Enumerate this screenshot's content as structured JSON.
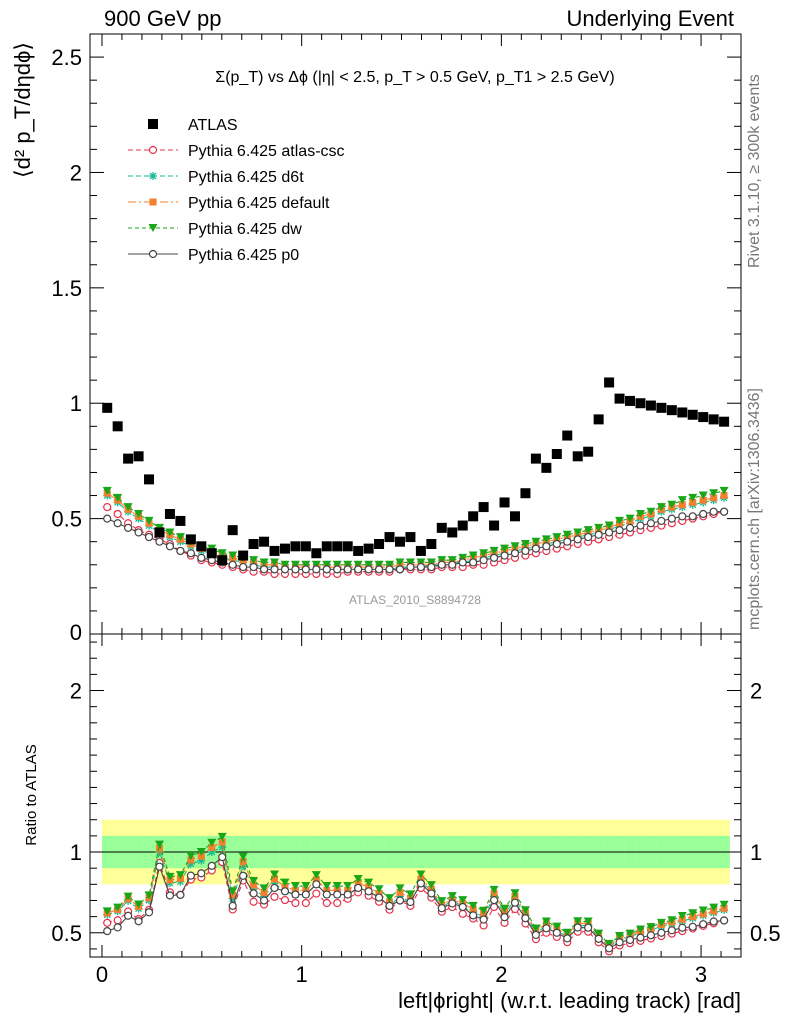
{
  "header": {
    "left": "900 GeV pp",
    "right": "Underlying Event"
  },
  "side_text": {
    "rivet": "Rivet 3.1.10, ≥ 300k events",
    "source": "mcplots.cern.ch [arXiv:1306.3436]"
  },
  "chart_data": [
    {
      "type": "scatter",
      "title": "Σ(p_T) vs Δϕ (|η| < 2.5, p_T > 0.5 GeV, p_T1 > 2.5 GeV)",
      "ylabel": "⟨d² p_T/dηdϕ⟩",
      "xlabel": "left|ϕright| (w.r.t. leading track) [rad]",
      "watermark": "ATLAS_2010_S8894728",
      "xlim": [
        -0.06,
        3.2
      ],
      "ylim": [
        0,
        2.6
      ],
      "yticks": [
        0.5,
        1,
        1.5,
        2,
        2.5
      ],
      "x": [
        0.0262,
        0.0785,
        0.1309,
        0.1833,
        0.2356,
        0.288,
        0.3403,
        0.3927,
        0.4451,
        0.4974,
        0.5498,
        0.6021,
        0.6545,
        0.7069,
        0.7592,
        0.8116,
        0.8639,
        0.9163,
        0.9687,
        1.021,
        1.0734,
        1.1257,
        1.1781,
        1.2305,
        1.2828,
        1.3352,
        1.3875,
        1.4399,
        1.4923,
        1.5446,
        1.597,
        1.6493,
        1.7017,
        1.7541,
        1.8064,
        1.8588,
        1.9111,
        1.9635,
        2.0159,
        2.0682,
        2.1206,
        2.1729,
        2.2253,
        2.2777,
        2.33,
        2.3824,
        2.4347,
        2.4871,
        2.5395,
        2.5918,
        2.6442,
        2.6965,
        2.7489,
        2.8013,
        2.8536,
        2.906,
        2.9583,
        3.0107,
        3.0631,
        3.1154
      ],
      "series": [
        {
          "name": "ATLAS",
          "color": "#000000",
          "marker": "square",
          "values": [
            0.98,
            0.9,
            0.76,
            0.77,
            0.67,
            0.44,
            0.52,
            0.49,
            0.41,
            0.38,
            0.35,
            0.32,
            0.45,
            0.34,
            0.39,
            0.4,
            0.36,
            0.37,
            0.38,
            0.38,
            0.35,
            0.38,
            0.38,
            0.38,
            0.36,
            0.37,
            0.39,
            0.42,
            0.4,
            0.42,
            0.36,
            0.39,
            0.46,
            0.44,
            0.47,
            0.51,
            0.55,
            0.47,
            0.57,
            0.51,
            0.61,
            0.76,
            0.72,
            0.78,
            0.86,
            0.77,
            0.79,
            0.93,
            1.09,
            1.02,
            1.01,
            1.0,
            0.99,
            0.98,
            0.97,
            0.96,
            0.95,
            0.94,
            0.93,
            0.92
          ]
        },
        {
          "name": "Pythia 6.425 atlas-csc",
          "color": "#e8304a",
          "marker": "circle-open",
          "dash": "5,3",
          "values": [
            0.55,
            0.52,
            0.48,
            0.45,
            0.43,
            0.41,
            0.39,
            0.36,
            0.34,
            0.32,
            0.31,
            0.3,
            0.29,
            0.28,
            0.27,
            0.27,
            0.26,
            0.26,
            0.26,
            0.26,
            0.26,
            0.26,
            0.26,
            0.27,
            0.27,
            0.27,
            0.27,
            0.27,
            0.28,
            0.28,
            0.28,
            0.28,
            0.29,
            0.29,
            0.29,
            0.3,
            0.3,
            0.31,
            0.32,
            0.33,
            0.34,
            0.35,
            0.36,
            0.37,
            0.38,
            0.39,
            0.4,
            0.41,
            0.42,
            0.43,
            0.44,
            0.45,
            0.46,
            0.47,
            0.48,
            0.49,
            0.5,
            0.51,
            0.52,
            0.53
          ]
        },
        {
          "name": "Pythia 6.425 d6t",
          "color": "#17b894",
          "marker": "star",
          "dash": "5,3",
          "values": [
            0.6,
            0.57,
            0.53,
            0.5,
            0.47,
            0.44,
            0.42,
            0.4,
            0.38,
            0.36,
            0.35,
            0.33,
            0.32,
            0.31,
            0.3,
            0.29,
            0.29,
            0.28,
            0.28,
            0.28,
            0.28,
            0.28,
            0.28,
            0.28,
            0.28,
            0.28,
            0.28,
            0.28,
            0.29,
            0.29,
            0.29,
            0.3,
            0.3,
            0.31,
            0.31,
            0.32,
            0.33,
            0.34,
            0.35,
            0.36,
            0.37,
            0.38,
            0.39,
            0.4,
            0.41,
            0.42,
            0.43,
            0.44,
            0.45,
            0.47,
            0.48,
            0.5,
            0.51,
            0.53,
            0.54,
            0.55,
            0.56,
            0.57,
            0.58,
            0.59
          ]
        },
        {
          "name": "Pythia 6.425 default",
          "color": "#f57f2e",
          "marker": "square-small",
          "dash": "8,3,2,3",
          "values": [
            0.61,
            0.58,
            0.54,
            0.51,
            0.48,
            0.45,
            0.43,
            0.41,
            0.39,
            0.37,
            0.36,
            0.34,
            0.33,
            0.32,
            0.31,
            0.3,
            0.3,
            0.29,
            0.29,
            0.29,
            0.29,
            0.29,
            0.29,
            0.29,
            0.29,
            0.29,
            0.29,
            0.29,
            0.3,
            0.3,
            0.3,
            0.3,
            0.31,
            0.31,
            0.32,
            0.33,
            0.34,
            0.35,
            0.36,
            0.37,
            0.38,
            0.39,
            0.4,
            0.41,
            0.42,
            0.43,
            0.44,
            0.45,
            0.46,
            0.48,
            0.49,
            0.51,
            0.52,
            0.54,
            0.55,
            0.56,
            0.57,
            0.58,
            0.59,
            0.6
          ]
        },
        {
          "name": "Pythia 6.425 dw",
          "color": "#19a619",
          "marker": "triangle-down",
          "dash": "4,3",
          "values": [
            0.62,
            0.59,
            0.55,
            0.52,
            0.49,
            0.46,
            0.44,
            0.42,
            0.4,
            0.38,
            0.37,
            0.35,
            0.34,
            0.33,
            0.32,
            0.31,
            0.31,
            0.3,
            0.3,
            0.3,
            0.3,
            0.3,
            0.3,
            0.3,
            0.3,
            0.3,
            0.3,
            0.3,
            0.31,
            0.31,
            0.31,
            0.31,
            0.32,
            0.32,
            0.33,
            0.34,
            0.35,
            0.36,
            0.37,
            0.38,
            0.39,
            0.4,
            0.41,
            0.42,
            0.43,
            0.44,
            0.45,
            0.46,
            0.47,
            0.49,
            0.5,
            0.52,
            0.53,
            0.55,
            0.56,
            0.58,
            0.59,
            0.6,
            0.61,
            0.62
          ]
        },
        {
          "name": "Pythia 6.425 p0",
          "color": "#444444",
          "marker": "circle-open",
          "values": [
            0.5,
            0.48,
            0.46,
            0.44,
            0.42,
            0.4,
            0.38,
            0.36,
            0.35,
            0.33,
            0.32,
            0.31,
            0.3,
            0.29,
            0.29,
            0.28,
            0.28,
            0.28,
            0.28,
            0.28,
            0.28,
            0.28,
            0.28,
            0.28,
            0.28,
            0.28,
            0.28,
            0.28,
            0.28,
            0.29,
            0.29,
            0.29,
            0.3,
            0.3,
            0.31,
            0.31,
            0.32,
            0.33,
            0.34,
            0.35,
            0.36,
            0.37,
            0.38,
            0.39,
            0.4,
            0.41,
            0.42,
            0.43,
            0.44,
            0.45,
            0.46,
            0.47,
            0.48,
            0.49,
            0.5,
            0.51,
            0.51,
            0.52,
            0.53,
            0.53
          ]
        }
      ]
    },
    {
      "type": "line",
      "ylabel": "Ratio to ATLAS",
      "xlim": [
        -0.06,
        3.2
      ],
      "ylim": [
        0.35,
        2.35
      ],
      "yticks": [
        0.5,
        1,
        2
      ],
      "xticks": [
        0,
        1,
        2,
        3
      ],
      "reference_line": 1,
      "band_colors": {
        "inner": "#99ff99",
        "outer": "#ffff99"
      },
      "band_inner_halfwidth": [
        0.1,
        0.1,
        0.1,
        0.1,
        0.1,
        0.1,
        0.1,
        0.1,
        0.1,
        0.1,
        0.1,
        0.1,
        0.1,
        0.1,
        0.1,
        0.1,
        0.1,
        0.1,
        0.1,
        0.1,
        0.1,
        0.1,
        0.1,
        0.1,
        0.1,
        0.1,
        0.1,
        0.1,
        0.1,
        0.1,
        0.1,
        0.1,
        0.1,
        0.1,
        0.1,
        0.1,
        0.1,
        0.1,
        0.1,
        0.1,
        0.1,
        0.1,
        0.1,
        0.1,
        0.1,
        0.1,
        0.1,
        0.1,
        0.1,
        0.1,
        0.1,
        0.1,
        0.1,
        0.1,
        0.1,
        0.1,
        0.1,
        0.1,
        0.1,
        0.1
      ],
      "band_outer_halfwidth": [
        0.2,
        0.2,
        0.2,
        0.2,
        0.2,
        0.2,
        0.2,
        0.2,
        0.2,
        0.2,
        0.2,
        0.2,
        0.2,
        0.2,
        0.2,
        0.2,
        0.2,
        0.2,
        0.2,
        0.2,
        0.2,
        0.2,
        0.2,
        0.2,
        0.2,
        0.2,
        0.2,
        0.2,
        0.2,
        0.2,
        0.2,
        0.2,
        0.2,
        0.2,
        0.2,
        0.2,
        0.2,
        0.2,
        0.2,
        0.2,
        0.2,
        0.2,
        0.2,
        0.2,
        0.2,
        0.2,
        0.2,
        0.2,
        0.2,
        0.2,
        0.2,
        0.2,
        0.2,
        0.2,
        0.2,
        0.2,
        0.2,
        0.2,
        0.2,
        0.2
      ]
    }
  ]
}
